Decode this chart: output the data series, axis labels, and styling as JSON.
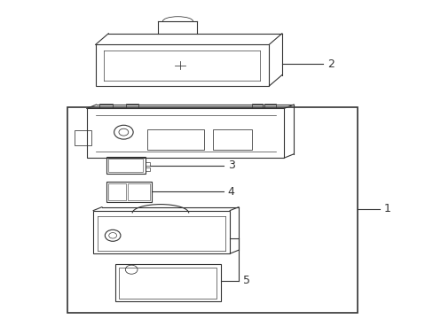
{
  "bg_color": "#ffffff",
  "line_color": "#333333",
  "label_color": "#333333",
  "fig_width": 4.89,
  "fig_height": 3.6,
  "dpi": 100
}
